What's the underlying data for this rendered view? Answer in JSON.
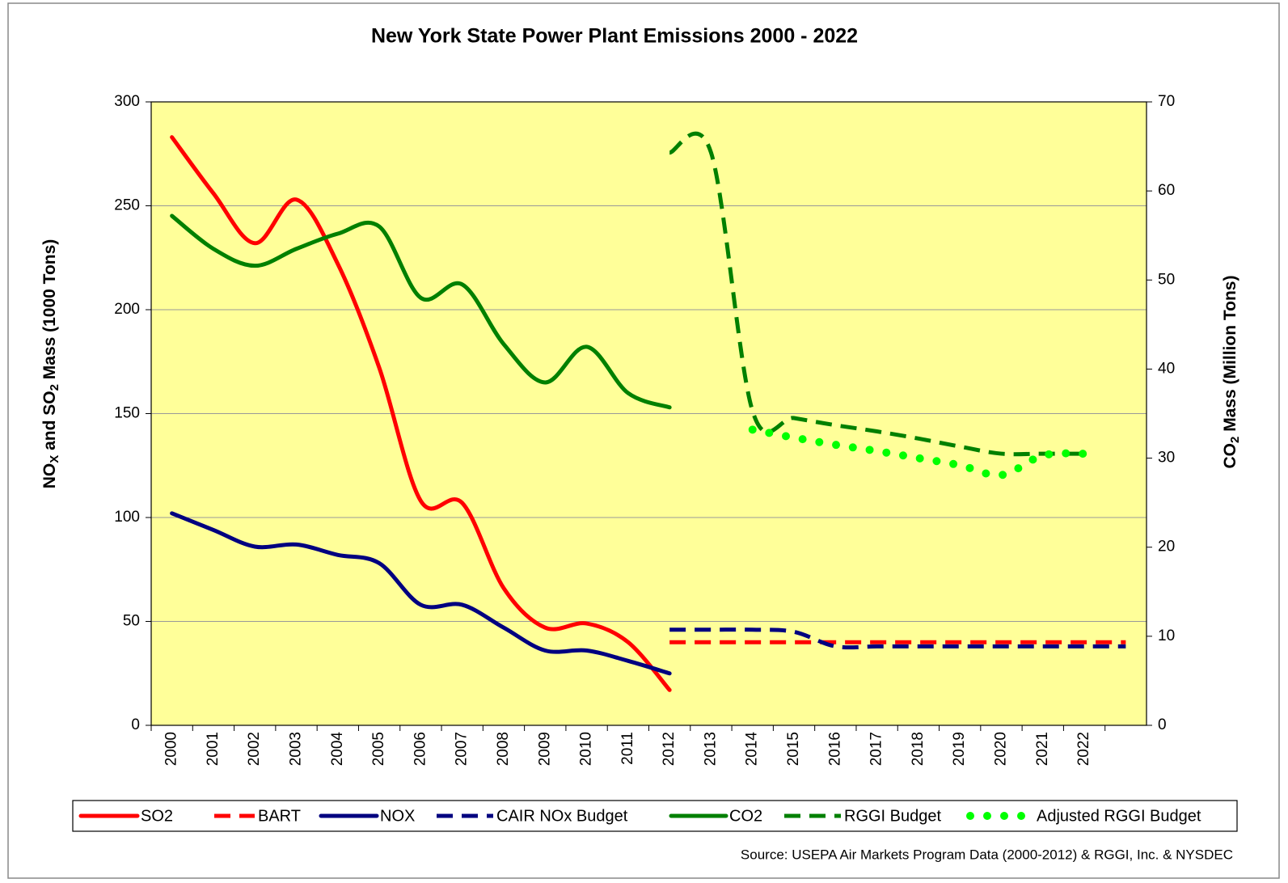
{
  "chart_data": {
    "type": "line",
    "title": "New York State Power Plant Emissions 2000 - 2022",
    "y_label": [
      "NO",
      "X",
      " and SO",
      "2",
      " Mass (1000 Tons)"
    ],
    "y2_label": [
      "CO",
      "2",
      " Mass (Million Tons)"
    ],
    "source": "Source: USEPA Air Markets Program Data (2000-2012) & RGGI, Inc. & NYSDEC",
    "categories": [
      "2000",
      "2001",
      "2002",
      "2003",
      "2004",
      "2005",
      "2006",
      "2007",
      "2008",
      "2009",
      "2010",
      "2011",
      "2012",
      "2013",
      "2014",
      "2015",
      "2016",
      "2017",
      "2018",
      "2019",
      "2020",
      "2021",
      "2022",
      null
    ],
    "ylim": [
      0,
      300
    ],
    "yticks": [
      0,
      50,
      100,
      150,
      200,
      250,
      300
    ],
    "y2lim": [
      0,
      70
    ],
    "y2ticks": [
      0,
      10,
      20,
      30,
      40,
      50,
      60,
      70
    ],
    "grid": true,
    "plot_background": "#ffff99",
    "legend": "bottom",
    "series": [
      {
        "name": "SO2",
        "color": "#ff0000",
        "dash": "solid",
        "values": [
          283,
          256,
          232,
          253,
          222,
          172,
          108,
          107,
          66,
          47,
          49,
          40,
          17,
          null,
          null,
          null,
          null,
          null,
          null,
          null,
          null,
          null,
          null,
          null
        ]
      },
      {
        "name": "BART",
        "color": "#ff0000",
        "dash": "dashed",
        "values": [
          null,
          null,
          null,
          null,
          null,
          null,
          null,
          null,
          null,
          null,
          null,
          null,
          40,
          40,
          40,
          40,
          40,
          40,
          40,
          40,
          40,
          40,
          40,
          40
        ]
      },
      {
        "name": "NOX",
        "color": "#000080",
        "dash": "solid",
        "values": [
          102,
          94,
          86,
          87,
          82,
          78,
          58,
          58,
          47,
          36,
          36,
          31,
          25,
          null,
          null,
          null,
          null,
          null,
          null,
          null,
          null,
          null,
          null,
          null
        ]
      },
      {
        "name": "CAIR NOx Budget",
        "color": "#000080",
        "dash": "dashed",
        "values": [
          null,
          null,
          null,
          null,
          null,
          null,
          null,
          null,
          null,
          null,
          null,
          null,
          46,
          46,
          46,
          45,
          38,
          38,
          38,
          38,
          38,
          38,
          38,
          38
        ]
      },
      {
        "name": "CO2",
        "color": "#008000",
        "dash": "solid",
        "axis": "y2",
        "values": [
          57.2,
          53.5,
          51.6,
          53.5,
          55.2,
          56,
          48,
          49.5,
          42.8,
          38.5,
          42.5,
          37.3,
          35.7,
          null,
          null,
          null,
          null,
          null,
          null,
          null,
          null,
          null,
          null,
          null
        ]
      },
      {
        "name": "RGGI Budget",
        "color": "#008000",
        "dash": "dashed",
        "axis": "y2",
        "values": [
          null,
          null,
          null,
          null,
          null,
          null,
          null,
          null,
          null,
          null,
          null,
          null,
          64.3,
          64.3,
          35.3,
          34.5,
          33.7,
          33,
          32.2,
          31.3,
          30.5,
          30.5,
          30.5,
          null
        ]
      },
      {
        "name": "Adjusted RGGI Budget",
        "color": "#00ff00",
        "dash": "dotted",
        "axis": "y2",
        "values": [
          null,
          null,
          null,
          null,
          null,
          null,
          null,
          null,
          null,
          null,
          null,
          null,
          null,
          null,
          33.2,
          32.3,
          31.5,
          30.8,
          30,
          29.2,
          28.1,
          30.3,
          30.5,
          null
        ]
      }
    ]
  }
}
